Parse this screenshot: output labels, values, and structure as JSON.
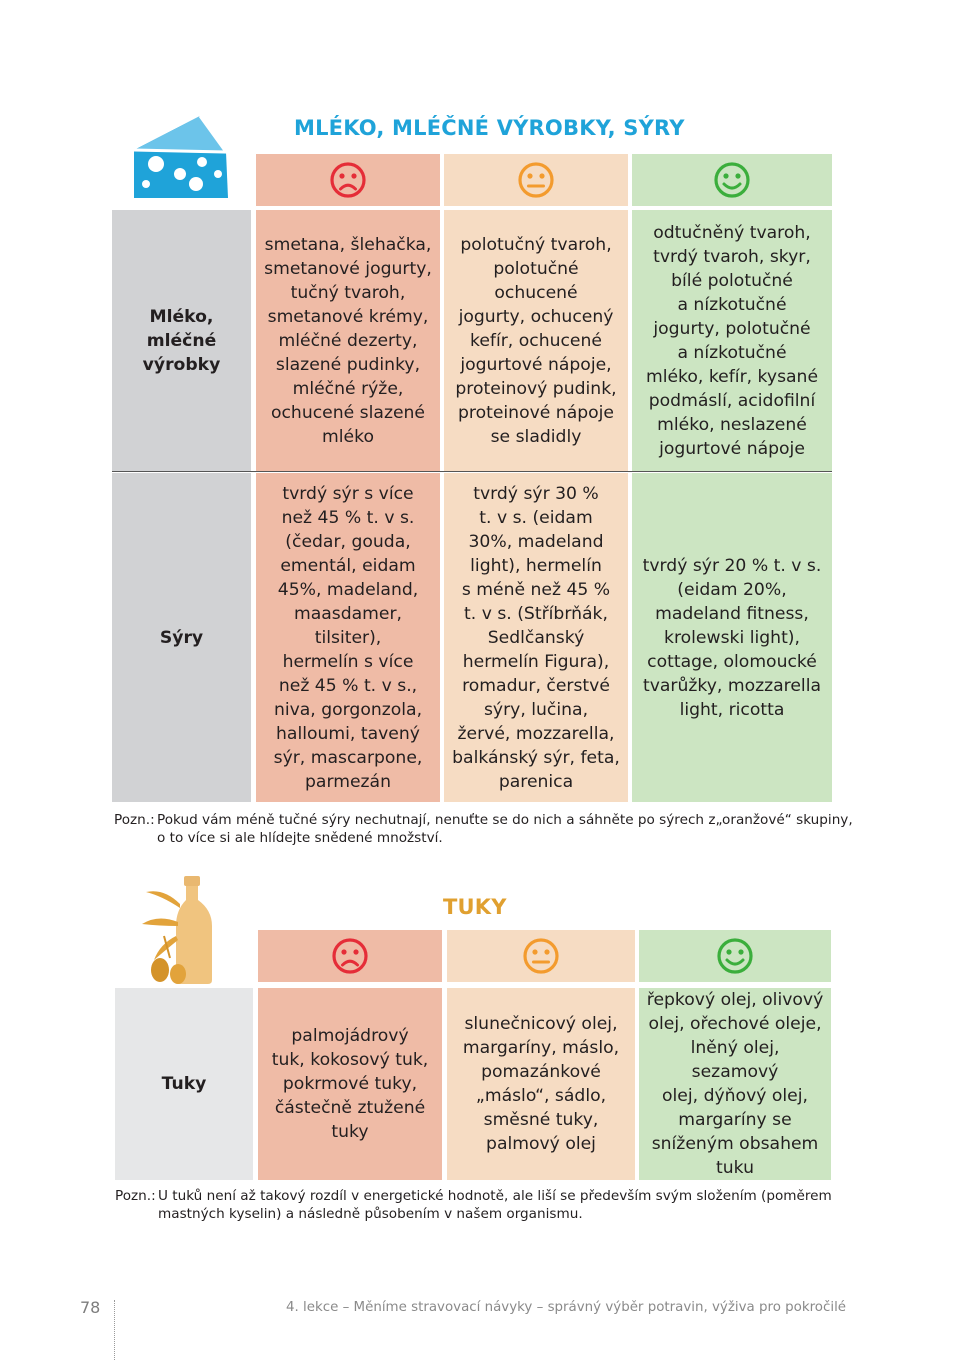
{
  "dairy": {
    "title": "MLÉKO, MLÉČNÉ VÝROBKY, SÝRY",
    "icon": "cheese-icon",
    "title_color": "#1fa3d9",
    "faces": {
      "bad": "sad-face-icon",
      "mid": "neutral-face-icon",
      "good": "happy-face-icon"
    },
    "rows": [
      {
        "category": "Mléko,\nmléčné\nvýrobky",
        "bad": "smetana, šlehačka,\nsmetanové jogurty,\ntučný tvaroh,\nsmetanové krémy,\nmléčné dezerty,\nslazené pudinky,\nmléčné rýže,\nochucené slazené\nmléko",
        "mid": "polotučný tvaroh,\npolotučné\nochucené\njogurty, ochucený\nkefír, ochucené\njogurtové nápoje,\nproteinový pudink,\nproteinové nápoje\nse sladidly",
        "good": "odtučněný tvaroh,\ntvrdý tvaroh, skyr,\nbílé polotučné\na nízkotučné\njogurty, polotučné\na nízkotučné\nmléko, kefír, kysané\npodmáslí, acidofilní\nmléko, neslazené\njogurtové nápoje"
      },
      {
        "category": "Sýry",
        "bad": "tvrdý sýr s více\nnež 45 % t. v s.\n(čedar, gouda,\nementál, eidam\n45%, madeland,\nmaasdamer, tilsiter),\nhermelín s více\nnež 45 % t. v s.,\nniva, gorgonzola,\nhalloumi, tavený\nsýr, mascarpone,\nparmezán",
        "mid": "tvrdý sýr 30 %\nt. v s. (eidam\n30%, madeland\nlight), hermelín\ns méně než 45 %\nt. v s. (Stříbrňák,\nSedlčanský\nhermelín Figura),\nromadur, čerstvé\nsýry, lučina,\nžervé, mozzarella,\nbalkánský sýr, feta,\nparenica",
        "good": "tvrdý sýr 20 % t. v s.\n(eidam 20%,\nmadeland fitness,\nkrolewski light),\ncottage, olomoucké\ntvarůžky, mozzarella\nlight, ricotta"
      }
    ],
    "note_label": "Pozn.:",
    "note_line1": "Pokud vám méně tučné sýry nechutnají, nenuťte se do nich a sáhněte po sýrech z„oranžové“ skupiny,",
    "note_line2": "o to více si ale hlídejte snědené množství."
  },
  "fats": {
    "title": "TUKY",
    "icon": "olive-oil-bottle-icon",
    "title_color": "#e0a030",
    "rows": [
      {
        "category": "Tuky",
        "bad": "palmojádrový\ntuk, kokosový tuk,\npokrmové tuky,\nčástečně ztužené\ntuky",
        "mid": "slunečnicový olej,\nmargaríny, máslo,\npomazánkové\n„máslo“, sádlo,\nsměsné tuky,\npalmový olej",
        "good": "řepkový olej, olivový\nolej, ořechové oleje,\nlněný olej, sezamový\nolej, dýňový olej,\nmargaríny se\nsníženým obsahem\ntuku"
      }
    ],
    "note_label": "Pozn.:",
    "note_line1": "U tuků není až takový rozdíl v energetické hodnotě, ale liší se především svým složením (poměrem",
    "note_line2": "mastných kyselin) a následně působením v našem organismu."
  },
  "footer": {
    "page_number": "78",
    "running_title": "4. lekce – Měníme stravovací návyky – správný výběr potravin, výživa pro pokročilé"
  },
  "colors": {
    "bad": "#efbba6",
    "mid": "#f6dcc3",
    "good": "#cce5c2",
    "category": "#d1d2d4",
    "face_bad": "#e52d38",
    "face_mid": "#f39b2e",
    "face_good": "#3bae3c"
  }
}
